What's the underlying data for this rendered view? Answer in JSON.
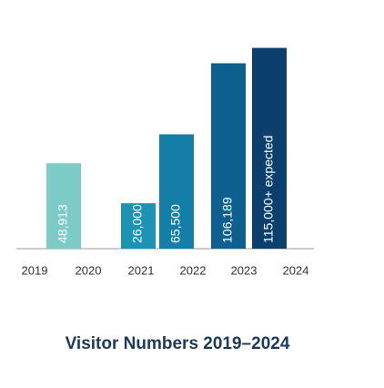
{
  "chart_data": {
    "type": "bar",
    "title": "Visitor Numbers 2019–2024",
    "categories": [
      "2019",
      "2020",
      "2021",
      "2022",
      "2023",
      "2024"
    ],
    "values": [
      48913,
      26000,
      65500,
      106189,
      null,
      115000
    ],
    "value_labels": [
      "48,913",
      "26,000",
      "65,500",
      "106,189",
      null,
      "115,000+ expected"
    ],
    "colors": [
      "#7ccbc6",
      "#1a93b4",
      "#137fa8",
      "#0c5f8e",
      null,
      "#0b3f6e"
    ],
    "ylim": [
      0,
      120000
    ]
  }
}
